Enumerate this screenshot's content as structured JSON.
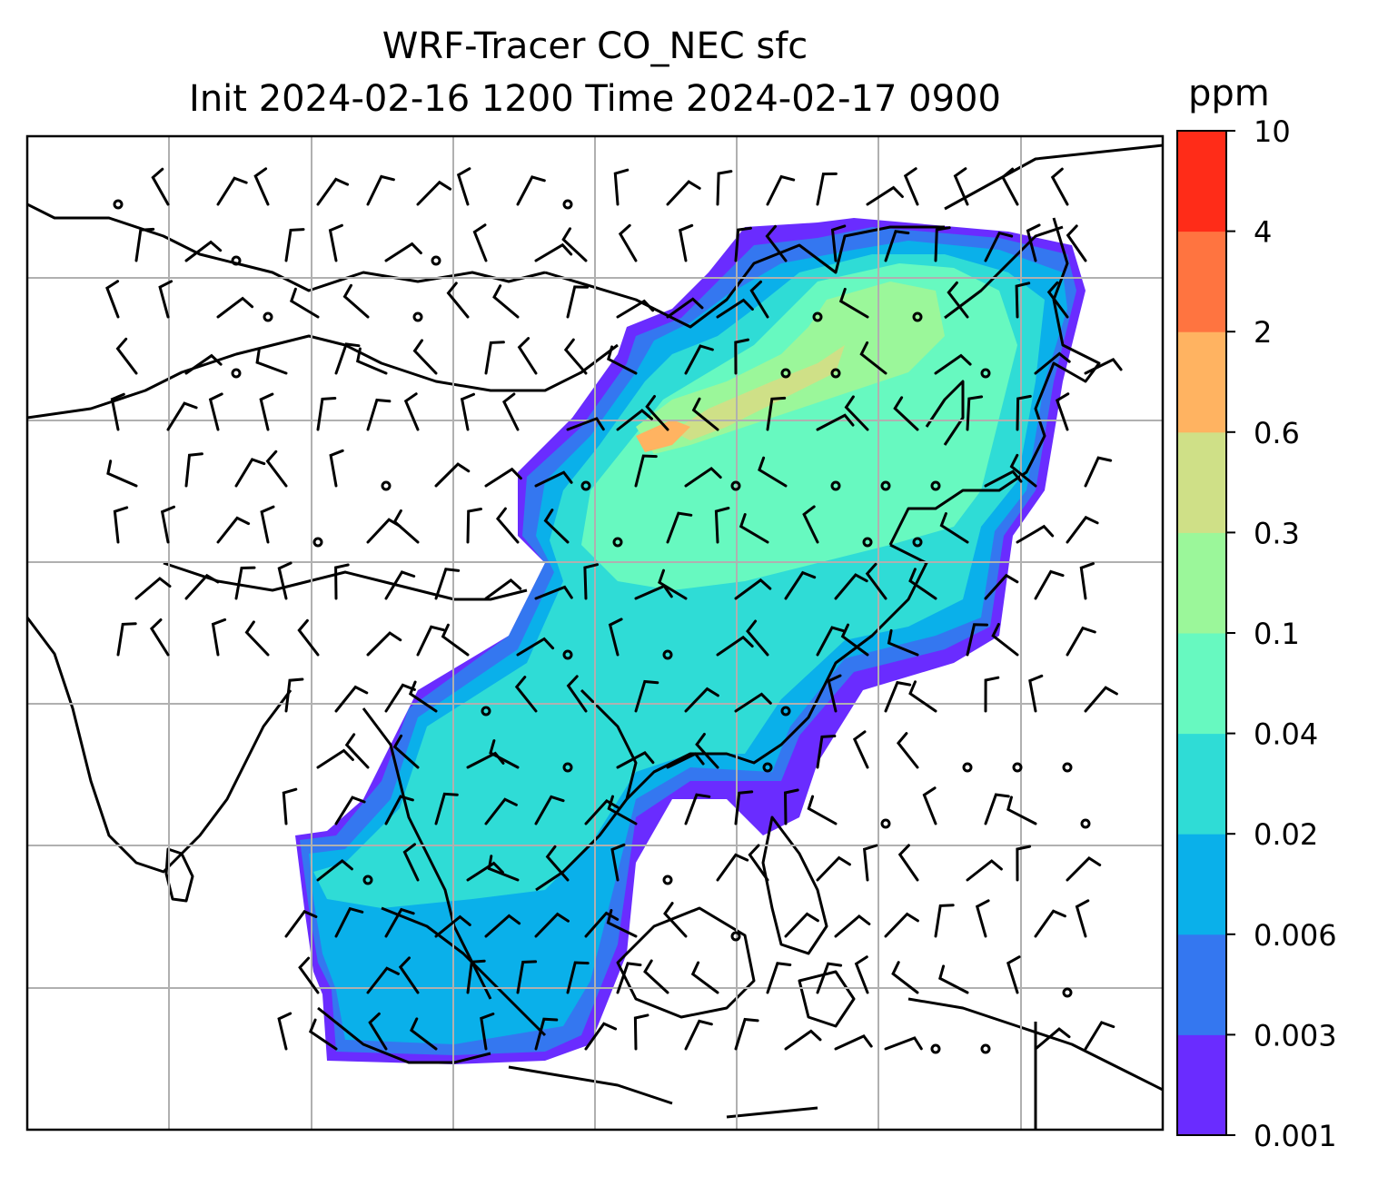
{
  "title": {
    "line1": "WRF-Tracer CO_NEC sfc",
    "line2": "Init 2024-02-16 1200 Time 2024-02-17 0900"
  },
  "colorbar": {
    "unit": "ppm",
    "levels": [
      "0.001",
      "0.003",
      "0.006",
      "0.02",
      "0.04",
      "0.1",
      "0.3",
      "0.6",
      "2",
      "4",
      "10"
    ],
    "colors": [
      "#6a2cff",
      "#3477f0",
      "#0ab0ea",
      "#2fdcd6",
      "#67f9c0",
      "#9bf79a",
      "#cfe087",
      "#ffb361",
      "#ff7440",
      "#ff2c18"
    ]
  },
  "map": {
    "gridlines": true,
    "coastline_color": "#000000",
    "grid_color": "#b0b0b0"
  }
}
